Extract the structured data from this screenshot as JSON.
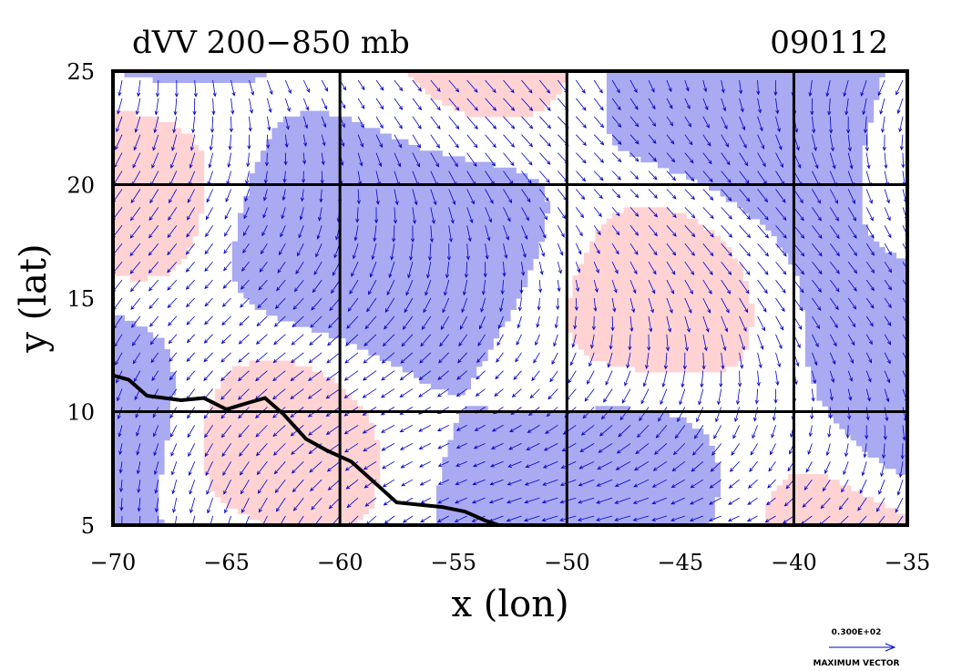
{
  "chart_data": {
    "type": "contour-vector-map",
    "title": "dVV 200−850 mb",
    "date_label": "090112",
    "xlabel": "x (lon)",
    "ylabel": "y (lat)",
    "xlim": [
      -70,
      -35
    ],
    "ylim": [
      5,
      25
    ],
    "x_ticks": [
      -70,
      -65,
      -60,
      -55,
      -50,
      -45,
      -40,
      -35
    ],
    "y_ticks": [
      5,
      10,
      15,
      20,
      25
    ],
    "x_tick_labels": [
      "−70",
      "−65",
      "−60",
      "−55",
      "−50",
      "−45",
      "−40",
      "−35"
    ],
    "y_tick_labels": [
      "5",
      "10",
      "15",
      "20",
      "25"
    ],
    "gridlines_lon": [
      -60,
      -50,
      -40
    ],
    "gridlines_lat": [
      10,
      20
    ],
    "colors": {
      "negative_fill": "#aaaaf2",
      "positive_fill": "#ffd3d3",
      "contour": "#ff0000",
      "vectors": "#0000cc",
      "coastline": "#000000"
    },
    "coastline": [
      [
        -70,
        11.6
      ],
      [
        -69.3,
        11.4
      ],
      [
        -68.5,
        10.7
      ],
      [
        -67,
        10.5
      ],
      [
        -66,
        10.6
      ],
      [
        -65,
        10.1
      ],
      [
        -64,
        10.4
      ],
      [
        -63.3,
        10.6
      ],
      [
        -62.5,
        9.9
      ],
      [
        -61.5,
        8.8
      ],
      [
        -60.6,
        8.3
      ],
      [
        -59.5,
        7.8
      ],
      [
        -58.5,
        6.9
      ],
      [
        -57.5,
        6.0
      ],
      [
        -56.5,
        5.9
      ],
      [
        -55.5,
        5.8
      ],
      [
        -54.5,
        5.6
      ],
      [
        -53.6,
        5.2
      ],
      [
        -53.0,
        5.0
      ]
    ],
    "legend": {
      "value_label": "0.300E+02",
      "caption": "MAXIMUM VECTOR"
    }
  }
}
